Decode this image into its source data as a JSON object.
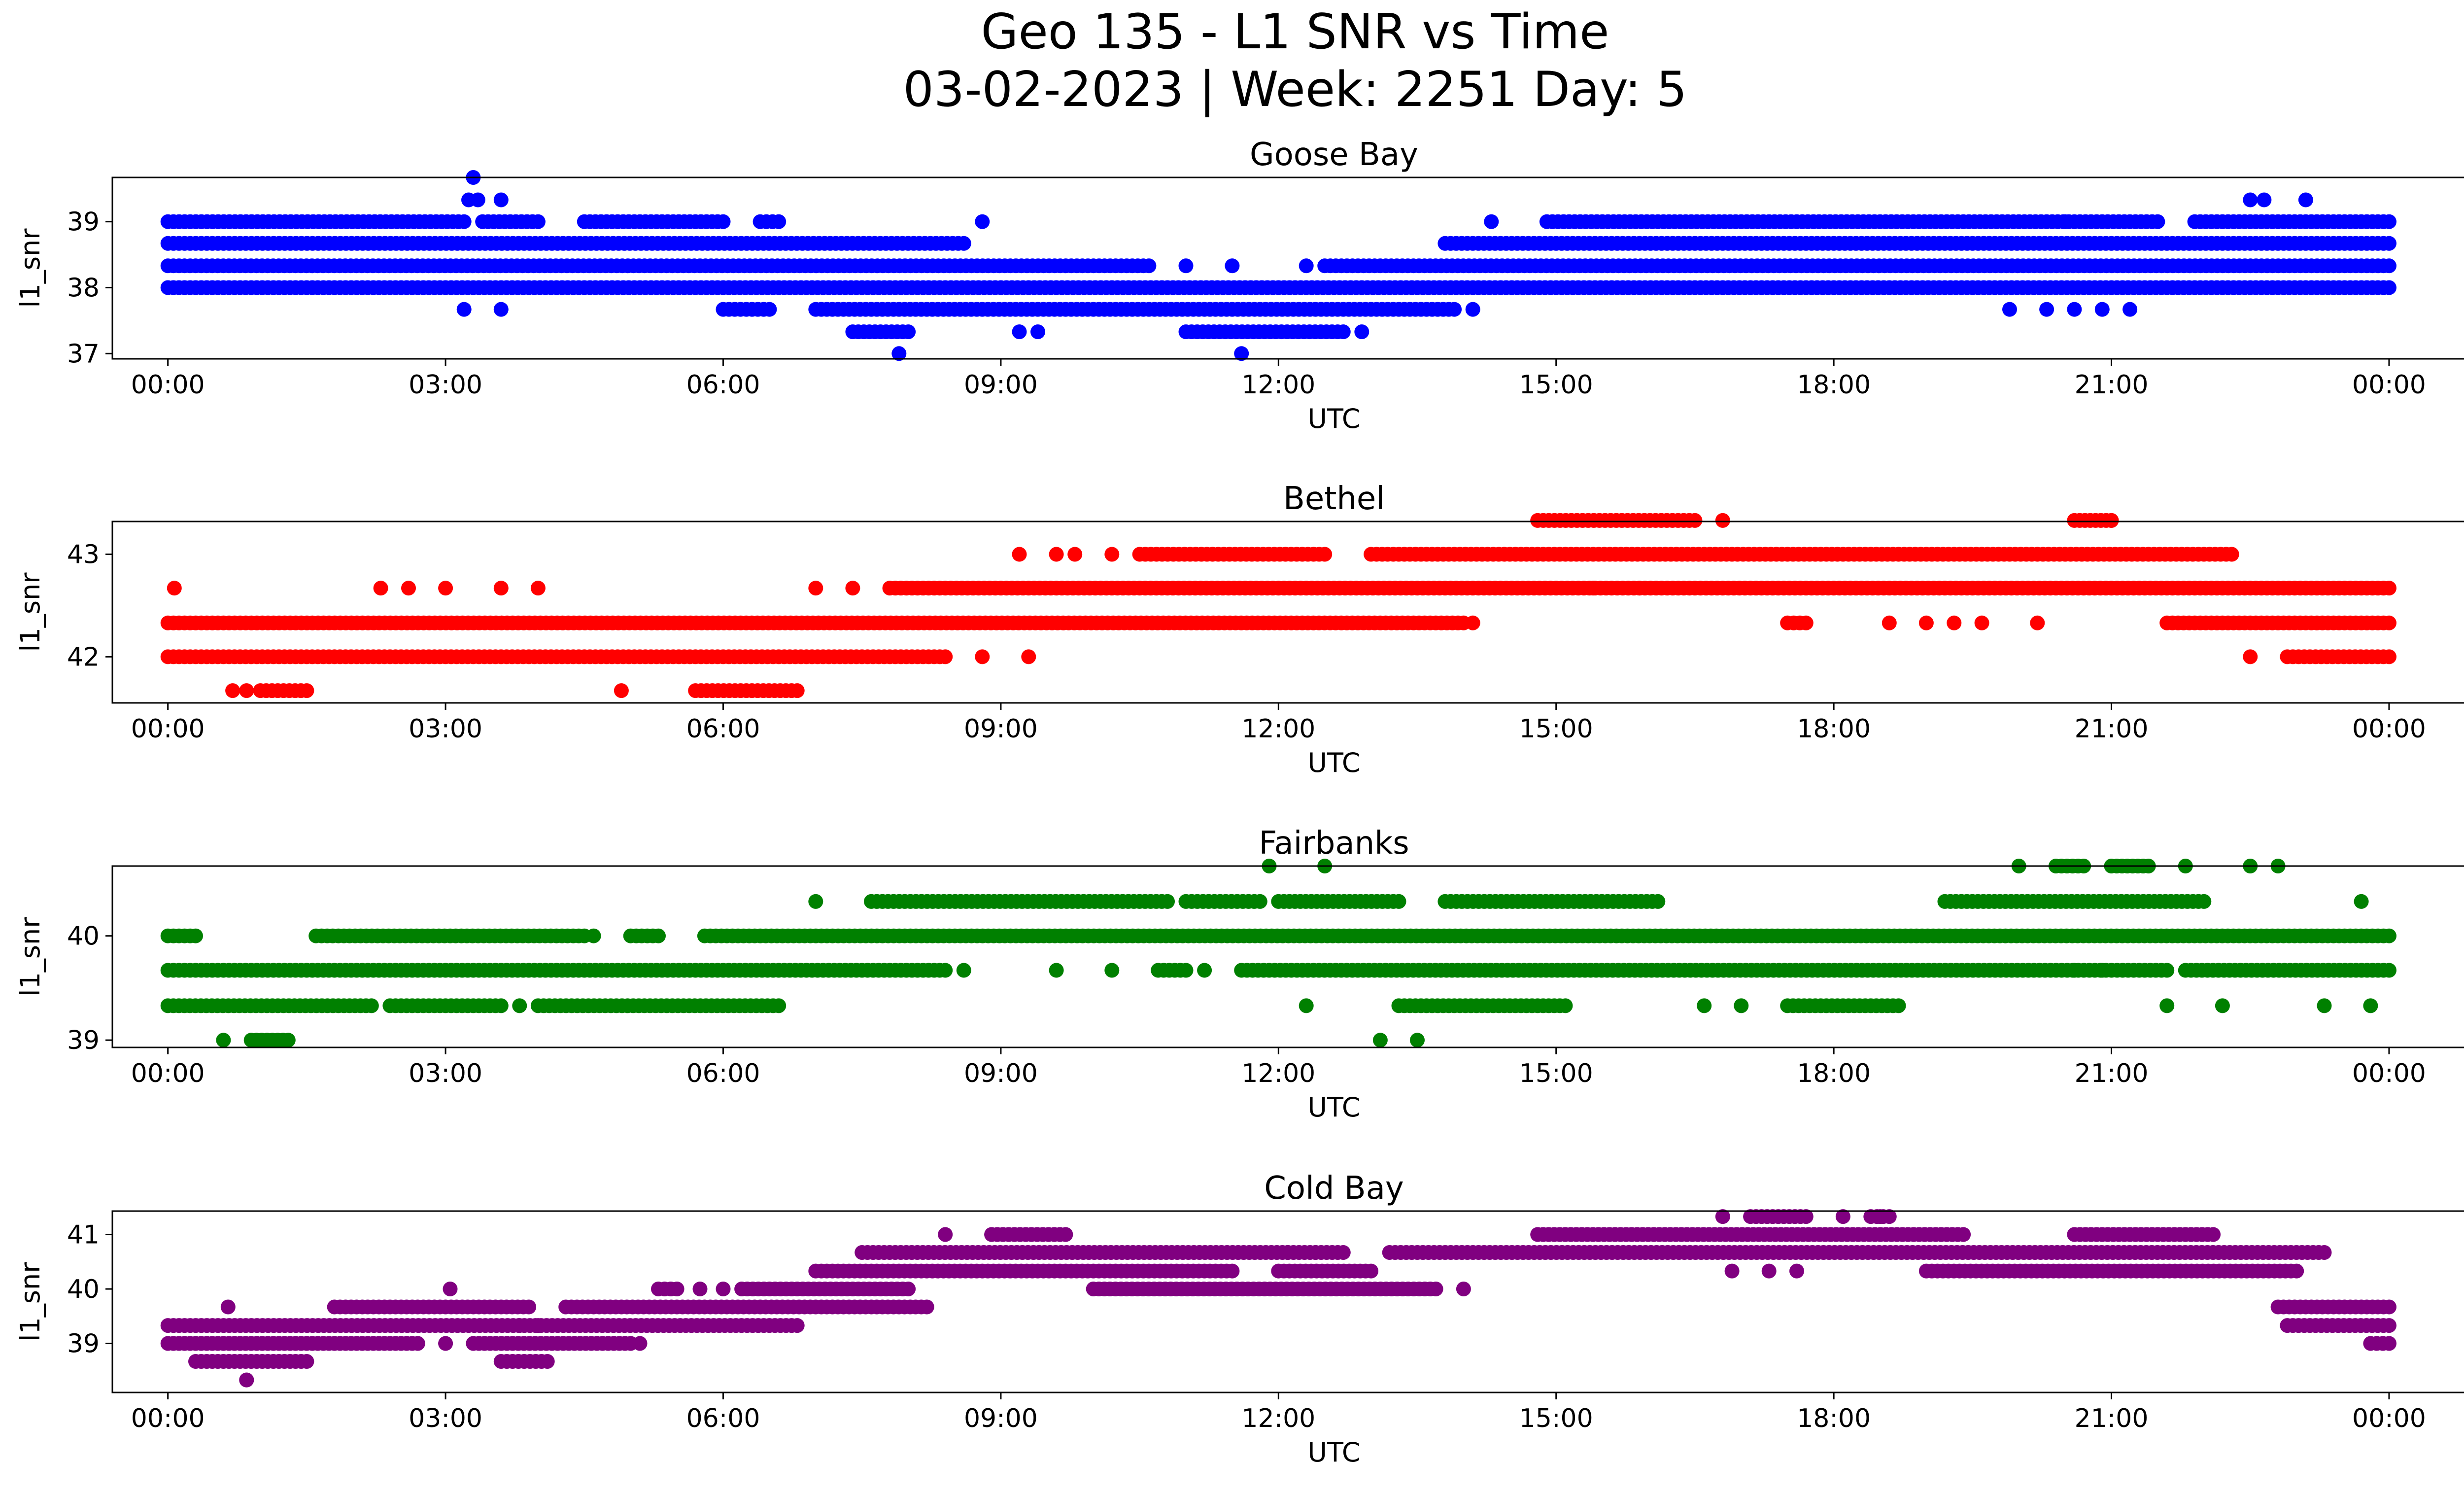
{
  "figure": {
    "title_line1": "Geo 135 - L1 SNR vs Time",
    "title_line2": "03-02-2023 | Week: 2251 Day: 5"
  },
  "chart_data": [
    {
      "type": "scatter",
      "title": "Goose Bay",
      "xlabel": "UTC",
      "ylabel": "l1_snr",
      "color": "#0000ff",
      "x_ticks": [
        "00:00",
        "03:00",
        "06:00",
        "09:00",
        "12:00",
        "15:00",
        "18:00",
        "21:00",
        "00:00"
      ],
      "x_range_hours": [
        -0.6,
        25.8
      ],
      "y_ticks": [
        37,
        38,
        39
      ],
      "ylim": [
        36.92,
        39.67
      ],
      "levels": [
        {
          "y": 39.0,
          "segments": [
            [
              0.0,
              3.2
            ],
            [
              3.4,
              4.0
            ],
            [
              4.5,
              6.0
            ],
            [
              6.4,
              6.6
            ],
            [
              14.9,
              21.5
            ],
            [
              21.9,
              24.0
            ]
          ]
        },
        {
          "y": 38.67,
          "segments": [
            [
              0.0,
              8.6
            ],
            [
              13.8,
              24.0
            ]
          ]
        },
        {
          "y": 38.33,
          "segments": [
            [
              0.0,
              10.6
            ],
            [
              12.5,
              24.0
            ]
          ]
        },
        {
          "y": 38.0,
          "segments": [
            [
              0.0,
              24.0
            ]
          ]
        },
        {
          "y": 37.67,
          "segments": [
            [
              6.0,
              6.5
            ],
            [
              7.0,
              13.9
            ]
          ]
        },
        {
          "y": 37.33,
          "segments": [
            [
              7.4,
              8.0
            ],
            [
              11.0,
              12.7
            ]
          ]
        }
      ],
      "points": [
        {
          "x": 3.3,
          "y": 39.67
        },
        {
          "x": 3.25,
          "y": 39.33
        },
        {
          "x": 3.35,
          "y": 39.33
        },
        {
          "x": 3.6,
          "y": 39.33
        },
        {
          "x": 3.2,
          "y": 37.67
        },
        {
          "x": 3.6,
          "y": 37.67
        },
        {
          "x": 8.8,
          "y": 39.0
        },
        {
          "x": 14.3,
          "y": 39.0
        },
        {
          "x": 20.5,
          "y": 39.0
        },
        {
          "x": 22.5,
          "y": 39.33
        },
        {
          "x": 22.65,
          "y": 39.33
        },
        {
          "x": 23.1,
          "y": 39.33
        },
        {
          "x": 7.9,
          "y": 37.0
        },
        {
          "x": 11.6,
          "y": 37.0
        },
        {
          "x": 9.2,
          "y": 37.33
        },
        {
          "x": 9.4,
          "y": 37.33
        },
        {
          "x": 12.9,
          "y": 37.33
        },
        {
          "x": 14.1,
          "y": 37.67
        },
        {
          "x": 19.9,
          "y": 37.67
        },
        {
          "x": 20.3,
          "y": 37.67
        },
        {
          "x": 20.6,
          "y": 37.67
        },
        {
          "x": 20.9,
          "y": 37.67
        },
        {
          "x": 21.2,
          "y": 37.67
        },
        {
          "x": 11.0,
          "y": 38.33
        },
        {
          "x": 11.5,
          "y": 38.33
        },
        {
          "x": 12.3,
          "y": 38.33
        }
      ]
    },
    {
      "type": "scatter",
      "title": "Bethel",
      "xlabel": "UTC",
      "ylabel": "l1_snr",
      "color": "#ff0000",
      "x_ticks": [
        "00:00",
        "03:00",
        "06:00",
        "09:00",
        "12:00",
        "15:00",
        "18:00",
        "21:00",
        "00:00"
      ],
      "x_range_hours": [
        -0.6,
        25.8
      ],
      "y_ticks": [
        42,
        43
      ],
      "ylim": [
        41.55,
        43.32
      ],
      "levels": [
        {
          "y": 43.33,
          "segments": [
            [
              14.8,
              16.5
            ],
            [
              20.6,
              21.0
            ]
          ]
        },
        {
          "y": 43.0,
          "segments": [
            [
              10.5,
              12.5
            ],
            [
              13.0,
              22.3
            ]
          ]
        },
        {
          "y": 42.67,
          "segments": [
            [
              7.8,
              24.0
            ]
          ]
        },
        {
          "y": 42.33,
          "segments": [
            [
              0.0,
              14.0
            ],
            [
              17.5,
              17.7
            ],
            [
              21.6,
              24.0
            ]
          ]
        },
        {
          "y": 42.0,
          "segments": [
            [
              0.0,
              8.4
            ],
            [
              22.9,
              24.0
            ]
          ]
        },
        {
          "y": 41.67,
          "segments": [
            [
              1.0,
              1.5
            ],
            [
              5.7,
              6.8
            ]
          ]
        }
      ],
      "points": [
        {
          "x": 0.07,
          "y": 42.67
        },
        {
          "x": 2.3,
          "y": 42.67
        },
        {
          "x": 2.6,
          "y": 42.67
        },
        {
          "x": 3.0,
          "y": 42.67
        },
        {
          "x": 3.6,
          "y": 42.67
        },
        {
          "x": 4.0,
          "y": 42.67
        },
        {
          "x": 7.0,
          "y": 42.67
        },
        {
          "x": 7.4,
          "y": 42.67
        },
        {
          "x": 9.2,
          "y": 43.0
        },
        {
          "x": 9.6,
          "y": 43.0
        },
        {
          "x": 9.8,
          "y": 43.0
        },
        {
          "x": 10.2,
          "y": 43.0
        },
        {
          "x": 16.8,
          "y": 43.33
        },
        {
          "x": 21.0,
          "y": 43.33
        },
        {
          "x": 0.7,
          "y": 41.67
        },
        {
          "x": 0.85,
          "y": 41.67
        },
        {
          "x": 4.9,
          "y": 41.67
        },
        {
          "x": 8.8,
          "y": 42.0
        },
        {
          "x": 9.3,
          "y": 42.0
        },
        {
          "x": 22.5,
          "y": 42.0
        },
        {
          "x": 14.1,
          "y": 42.33
        },
        {
          "x": 18.6,
          "y": 42.33
        },
        {
          "x": 19.0,
          "y": 42.33
        },
        {
          "x": 19.3,
          "y": 42.33
        },
        {
          "x": 19.6,
          "y": 42.33
        },
        {
          "x": 20.2,
          "y": 42.33
        },
        {
          "x": 15.4,
          "y": 42.67
        },
        {
          "x": 15.9,
          "y": 42.67
        }
      ]
    },
    {
      "type": "scatter",
      "title": "Fairbanks",
      "xlabel": "UTC",
      "ylabel": "l1_snr",
      "color": "#008000",
      "x_ticks": [
        "00:00",
        "03:00",
        "06:00",
        "09:00",
        "12:00",
        "15:00",
        "18:00",
        "21:00",
        "00:00"
      ],
      "x_range_hours": [
        -0.6,
        25.8
      ],
      "y_ticks": [
        39,
        40
      ],
      "ylim": [
        38.93,
        40.67
      ],
      "levels": [
        {
          "y": 40.67,
          "segments": [
            [
              20.4,
              20.7
            ],
            [
              21.0,
              21.4
            ]
          ]
        },
        {
          "y": 40.33,
          "segments": [
            [
              7.6,
              10.8
            ],
            [
              11.0,
              11.8
            ],
            [
              12.0,
              13.3
            ],
            [
              13.8,
              16.1
            ],
            [
              19.2,
              22.0
            ]
          ]
        },
        {
          "y": 40.0,
          "segments": [
            [
              0.0,
              0.3
            ],
            [
              1.6,
              4.5
            ],
            [
              5.0,
              5.3
            ],
            [
              5.8,
              24.0
            ]
          ]
        },
        {
          "y": 39.67,
          "segments": [
            [
              0.0,
              8.4
            ],
            [
              10.7,
              11.0
            ],
            [
              11.6,
              21.6
            ],
            [
              21.8,
              24.0
            ]
          ]
        },
        {
          "y": 39.33,
          "segments": [
            [
              0.0,
              2.2
            ],
            [
              2.4,
              3.6
            ],
            [
              4.0,
              6.6
            ],
            [
              13.3,
              15.1
            ],
            [
              17.5,
              18.7
            ]
          ]
        },
        {
          "y": 39.0,
          "segments": [
            [
              0.9,
              1.3
            ]
          ]
        }
      ],
      "points": [
        {
          "x": 0.6,
          "y": 39.0
        },
        {
          "x": 13.1,
          "y": 39.0
        },
        {
          "x": 13.5,
          "y": 39.0
        },
        {
          "x": 7.0,
          "y": 40.33
        },
        {
          "x": 11.9,
          "y": 40.67
        },
        {
          "x": 12.5,
          "y": 40.67
        },
        {
          "x": 20.0,
          "y": 40.67
        },
        {
          "x": 21.8,
          "y": 40.67
        },
        {
          "x": 22.5,
          "y": 40.67
        },
        {
          "x": 22.8,
          "y": 40.67
        },
        {
          "x": 23.7,
          "y": 40.33
        },
        {
          "x": 8.6,
          "y": 39.67
        },
        {
          "x": 9.6,
          "y": 39.67
        },
        {
          "x": 10.2,
          "y": 39.67
        },
        {
          "x": 11.2,
          "y": 39.67
        },
        {
          "x": 3.8,
          "y": 39.33
        },
        {
          "x": 12.3,
          "y": 39.33
        },
        {
          "x": 16.6,
          "y": 39.33
        },
        {
          "x": 17.0,
          "y": 39.33
        },
        {
          "x": 21.6,
          "y": 39.33
        },
        {
          "x": 22.2,
          "y": 39.33
        },
        {
          "x": 23.3,
          "y": 39.33
        },
        {
          "x": 23.8,
          "y": 39.33
        },
        {
          "x": 4.6,
          "y": 40.0
        },
        {
          "x": 20.6,
          "y": 39.67
        },
        {
          "x": 20.9,
          "y": 39.67
        }
      ]
    },
    {
      "type": "scatter",
      "title": "Cold Bay",
      "xlabel": "UTC",
      "ylabel": "l1_snr",
      "color": "#800080",
      "x_ticks": [
        "00:00",
        "03:00",
        "06:00",
        "09:00",
        "12:00",
        "15:00",
        "18:00",
        "21:00",
        "00:00"
      ],
      "x_range_hours": [
        -0.6,
        25.8
      ],
      "y_ticks": [
        39,
        40,
        41
      ],
      "ylim": [
        38.1,
        41.43
      ],
      "levels": [
        {
          "y": 41.33,
          "segments": [
            [
              17.1,
              17.7
            ],
            [
              18.4,
              18.6
            ]
          ]
        },
        {
          "y": 41.0,
          "segments": [
            [
              8.9,
              9.7
            ],
            [
              14.8,
              19.4
            ],
            [
              20.6,
              22.1
            ]
          ]
        },
        {
          "y": 40.67,
          "segments": [
            [
              7.5,
              12.7
            ],
            [
              13.2,
              23.3
            ]
          ]
        },
        {
          "y": 40.33,
          "segments": [
            [
              7.0,
              11.5
            ],
            [
              12.0,
              13.0
            ],
            [
              19.0,
              23.0
            ]
          ]
        },
        {
          "y": 40.0,
          "segments": [
            [
              5.3,
              5.5
            ],
            [
              6.2,
              8.0
            ],
            [
              10.0,
              13.7
            ]
          ]
        },
        {
          "y": 39.67,
          "segments": [
            [
              1.8,
              3.9
            ],
            [
              4.3,
              8.2
            ],
            [
              22.8,
              24.0
            ]
          ]
        },
        {
          "y": 39.33,
          "segments": [
            [
              0.0,
              6.8
            ],
            [
              22.9,
              24.0
            ]
          ]
        },
        {
          "y": 39.0,
          "segments": [
            [
              0.0,
              2.7
            ],
            [
              3.3,
              5.0
            ],
            [
              23.8,
              24.0
            ]
          ]
        },
        {
          "y": 38.67,
          "segments": [
            [
              0.3,
              1.5
            ],
            [
              3.6,
              4.1
            ]
          ]
        },
        {
          "y": 38.33,
          "segments": [
            [
              0.85,
              0.85
            ]
          ]
        }
      ],
      "points": [
        {
          "x": 3.05,
          "y": 40.0
        },
        {
          "x": 0.65,
          "y": 39.67
        },
        {
          "x": 5.1,
          "y": 39.0
        },
        {
          "x": 8.4,
          "y": 41.0
        },
        {
          "x": 16.8,
          "y": 41.33
        },
        {
          "x": 18.1,
          "y": 41.33
        },
        {
          "x": 18.5,
          "y": 41.33
        },
        {
          "x": 16.9,
          "y": 40.33
        },
        {
          "x": 17.3,
          "y": 40.33
        },
        {
          "x": 17.6,
          "y": 40.33
        },
        {
          "x": 14.0,
          "y": 40.0
        },
        {
          "x": 3.0,
          "y": 39.0
        },
        {
          "x": 5.75,
          "y": 40.0
        },
        {
          "x": 6.0,
          "y": 40.0
        },
        {
          "x": 12.1,
          "y": 40.67
        },
        {
          "x": 12.4,
          "y": 40.67
        },
        {
          "x": 3.8,
          "y": 39.33
        },
        {
          "x": 4.0,
          "y": 39.33
        }
      ]
    }
  ]
}
